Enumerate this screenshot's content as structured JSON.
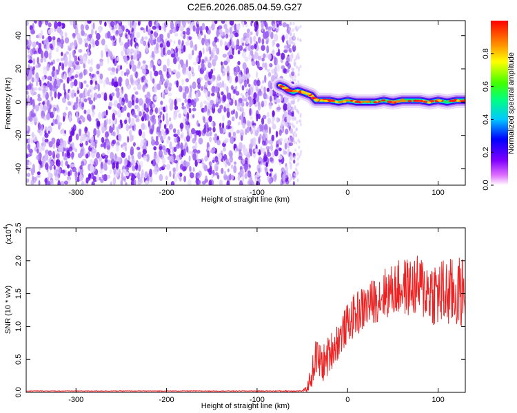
{
  "title": "C2E6.2026.085.04.59.G27",
  "colors": {
    "snr_line": "#ee2222",
    "noise_purple": "#7a22ee",
    "frame": "#000000"
  },
  "chart_data": [
    {
      "type": "heatmap",
      "title": "C2E6.2026.085.04.59.G27",
      "xlabel": "Height of straight line (km)",
      "ylabel": "Frequency (Hz)",
      "xlim": [
        -355,
        130
      ],
      "ylim": [
        -50,
        49
      ],
      "x_ticks": [
        "-300",
        "-200",
        "-100",
        "0",
        "100"
      ],
      "y_ticks": [
        "40",
        "20",
        "0",
        "-20",
        "-40"
      ],
      "x_tick_values": [
        -300,
        -200,
        -100,
        0,
        100
      ],
      "y_tick_values": [
        40,
        20,
        0,
        -20,
        -40
      ],
      "colorbar": {
        "label": "Normalized spectral amplitude",
        "range": [
          0.0,
          1.0
        ],
        "ticks": [
          "0.0",
          "0.2",
          "0.4",
          "0.6",
          "0.8"
        ],
        "tick_values": [
          0.0,
          0.2,
          0.4,
          0.6,
          0.8
        ]
      },
      "noise_region_x": [
        -355,
        -65
      ],
      "signal_track": {
        "x": [
          -75,
          -70,
          -65,
          -60,
          -55,
          -50,
          -45,
          -40,
          -35,
          -30,
          -25,
          -20,
          -10,
          0,
          10,
          20,
          30,
          40,
          50,
          60,
          70,
          80,
          90,
          100,
          110,
          120,
          130
        ],
        "freq": [
          10,
          9,
          7,
          6,
          7,
          6,
          5,
          4,
          1,
          1,
          1,
          1,
          0,
          1,
          0,
          0,
          0,
          1,
          0,
          1,
          1,
          1,
          0,
          1,
          0,
          1,
          1
        ]
      }
    },
    {
      "type": "line",
      "xlabel": "Height of straight line (km)",
      "ylabel": "SNR (10 * v/v)",
      "y_multiplier": "(x10",
      "y_multiplier_exp": "4",
      "y_multiplier_close": ")",
      "xlim": [
        -355,
        130
      ],
      "ylim": [
        0,
        2.5
      ],
      "x_ticks": [
        "-300",
        "-200",
        "-100",
        "0",
        "100"
      ],
      "y_ticks": [
        "0.0",
        "0.5",
        "1.0",
        "1.5",
        "2.0",
        "2.5"
      ],
      "x_tick_values": [
        -300,
        -200,
        -100,
        0,
        100
      ],
      "y_tick_values": [
        0,
        0.5,
        1.0,
        1.5,
        2.0,
        2.5
      ],
      "series": [
        {
          "name": "SNR",
          "x": [
            -355,
            -100,
            -50,
            -45,
            -40,
            -35,
            -30,
            -25,
            -20,
            -10,
            0,
            10,
            20,
            30,
            40,
            50,
            60,
            70,
            80,
            90,
            100,
            110,
            120,
            130
          ],
          "mean": [
            0.02,
            0.02,
            0.02,
            0.05,
            0.25,
            0.55,
            0.45,
            0.45,
            0.6,
            0.8,
            1.05,
            1.2,
            1.3,
            1.4,
            1.5,
            1.55,
            1.6,
            1.6,
            1.6,
            1.55,
            1.5,
            1.5,
            1.5,
            1.55
          ],
          "amp": [
            0.005,
            0.005,
            0.01,
            0.05,
            0.2,
            0.3,
            0.3,
            0.3,
            0.3,
            0.3,
            0.3,
            0.35,
            0.35,
            0.35,
            0.4,
            0.4,
            0.45,
            0.45,
            0.5,
            0.5,
            0.55,
            0.55,
            0.55,
            0.55
          ]
        }
      ]
    }
  ]
}
